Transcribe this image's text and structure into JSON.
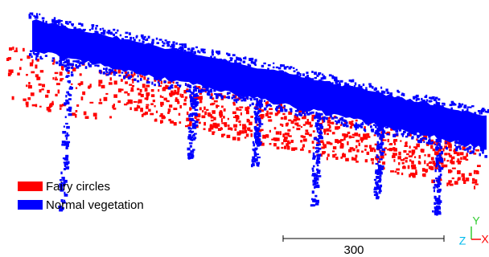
{
  "legend": [
    {
      "label": "Fairy circles",
      "color": "#ff0000"
    },
    {
      "label": "Normal vegetation",
      "color": "#0000ff"
    }
  ],
  "scale_bar": {
    "label": "300"
  },
  "axes": {
    "y": "Y",
    "z": "Z",
    "x": "X"
  }
}
